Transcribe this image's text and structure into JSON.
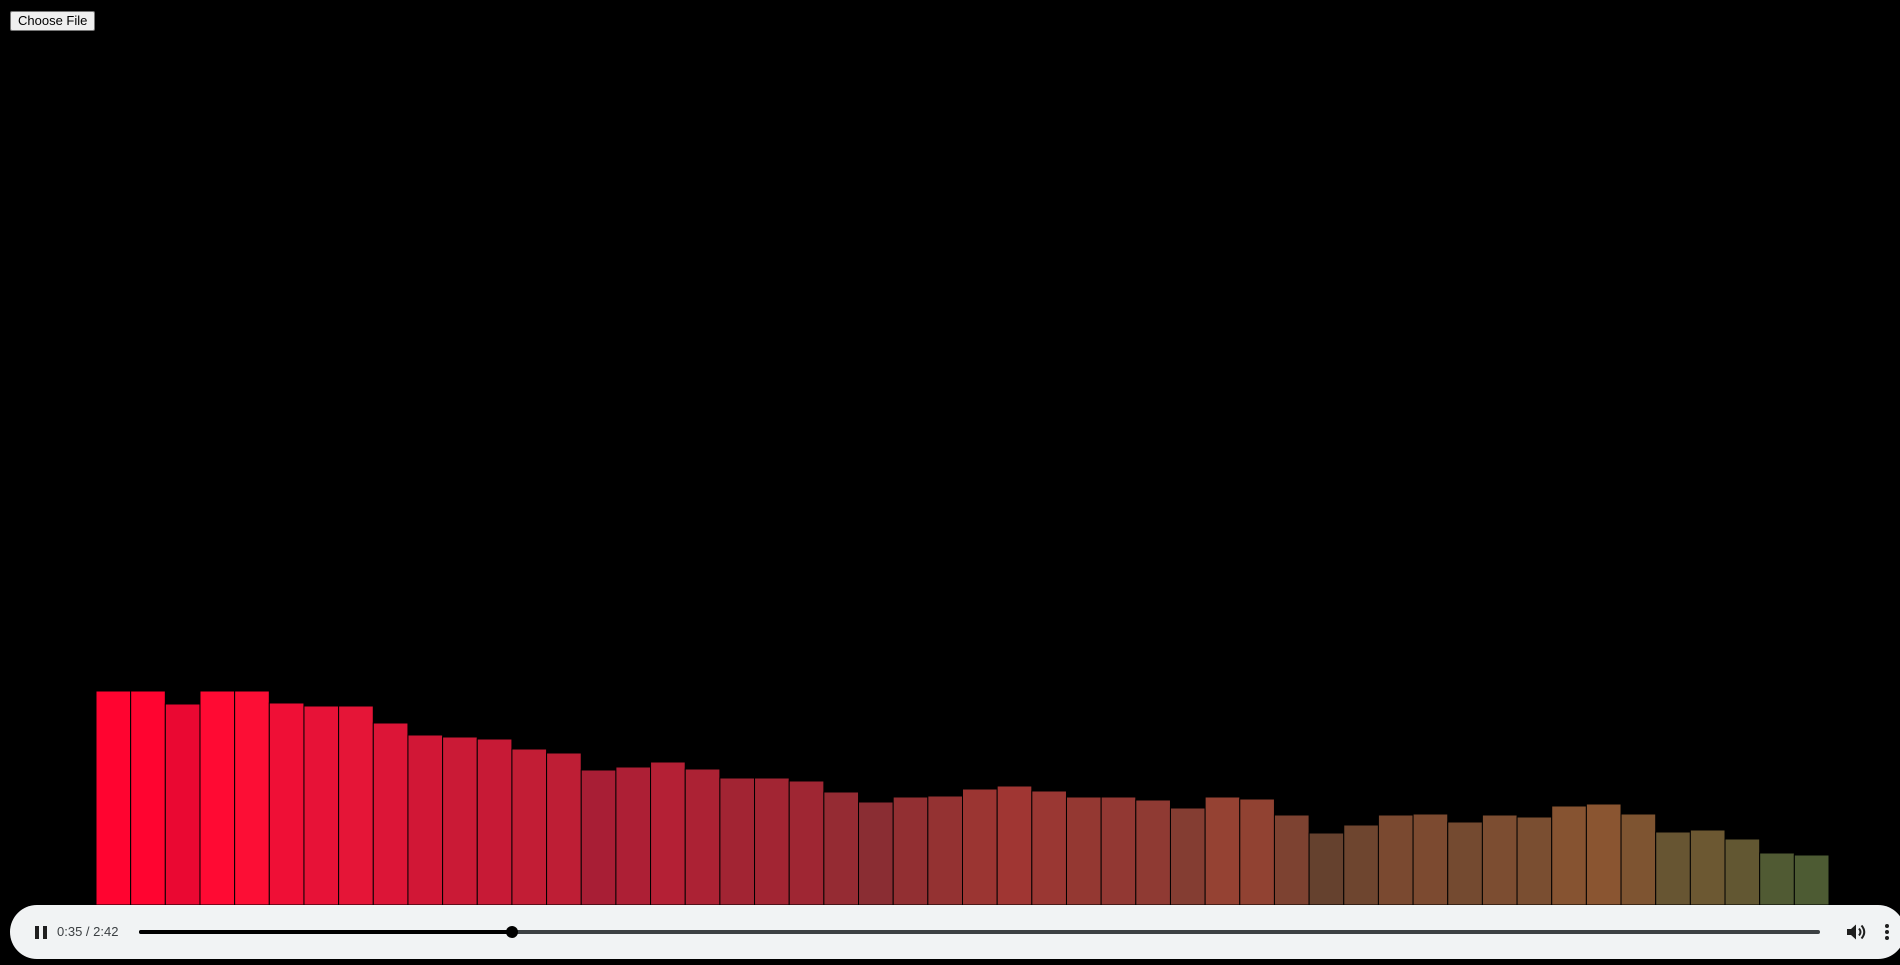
{
  "file_input": {
    "label": "Choose File"
  },
  "visualizer": {
    "bar_stroke": "#000000",
    "levels": [
      {
        "value": 214,
        "color": "#ff0430"
      },
      {
        "value": 214,
        "color": "#ff0430"
      },
      {
        "value": 201,
        "color": "#ea0832"
      },
      {
        "value": 214,
        "color": "#ff0a33"
      },
      {
        "value": 214,
        "color": "#fc0e35"
      },
      {
        "value": 202,
        "color": "#ef0f36"
      },
      {
        "value": 199,
        "color": "#e71237"
      },
      {
        "value": 199,
        "color": "#e51537"
      },
      {
        "value": 182,
        "color": "#dc1537"
      },
      {
        "value": 170,
        "color": "#d11736"
      },
      {
        "value": 168,
        "color": "#ca1a36"
      },
      {
        "value": 166,
        "color": "#c71a36"
      },
      {
        "value": 156,
        "color": "#c21d35"
      },
      {
        "value": 152,
        "color": "#be1e35"
      },
      {
        "value": 135,
        "color": "#a81e35"
      },
      {
        "value": 138,
        "color": "#ad1f35"
      },
      {
        "value": 143,
        "color": "#b42035"
      },
      {
        "value": 136,
        "color": "#ac2234"
      },
      {
        "value": 127,
        "color": "#a22433"
      },
      {
        "value": 127,
        "color": "#a22533"
      },
      {
        "value": 124,
        "color": "#9f2633"
      },
      {
        "value": 113,
        "color": "#952b33"
      },
      {
        "value": 103,
        "color": "#8a2d33"
      },
      {
        "value": 108,
        "color": "#922f32"
      },
      {
        "value": 109,
        "color": "#943232"
      },
      {
        "value": 116,
        "color": "#9b3532"
      },
      {
        "value": 119,
        "color": "#a03633"
      },
      {
        "value": 114,
        "color": "#9a3733"
      },
      {
        "value": 108,
        "color": "#943832"
      },
      {
        "value": 108,
        "color": "#923833"
      },
      {
        "value": 105,
        "color": "#8f3a33"
      },
      {
        "value": 97,
        "color": "#843d32"
      },
      {
        "value": 108,
        "color": "#954233"
      },
      {
        "value": 106,
        "color": "#914232"
      },
      {
        "value": 90,
        "color": "#7d4231"
      },
      {
        "value": 72,
        "color": "#65412e"
      },
      {
        "value": 80,
        "color": "#6e452f"
      },
      {
        "value": 90,
        "color": "#7a4930"
      },
      {
        "value": 91,
        "color": "#7c4a30"
      },
      {
        "value": 83,
        "color": "#744a30"
      },
      {
        "value": 90,
        "color": "#7c4d31"
      },
      {
        "value": 88,
        "color": "#7a4e31"
      },
      {
        "value": 99,
        "color": "#865331"
      },
      {
        "value": 101,
        "color": "#8a5531"
      },
      {
        "value": 91,
        "color": "#7e5431"
      },
      {
        "value": 73,
        "color": "#675532"
      },
      {
        "value": 75,
        "color": "#6c5832"
      },
      {
        "value": 66,
        "color": "#625732"
      },
      {
        "value": 52,
        "color": "#505a33"
      },
      {
        "value": 50,
        "color": "#4d5b33"
      }
    ]
  },
  "player": {
    "state": "playing",
    "play_toggle_icon": "pause-icon",
    "time_display": "0:35 / 2:42",
    "current_seconds": 35,
    "duration_seconds": 162,
    "progress_fraction": 0.2218,
    "volume_icon": "volume-up-icon",
    "more_icon": "more-vert-icon",
    "background": "#f1f3f4",
    "track_color": "#3c4043",
    "played_color": "#000000"
  }
}
